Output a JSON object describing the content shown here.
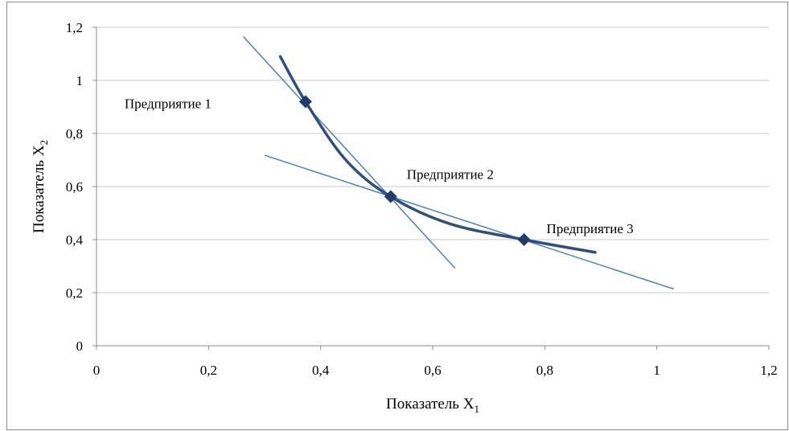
{
  "chart_data": {
    "type": "scatter",
    "title": "",
    "xlabel": "Показатель X",
    "xlabel_sub": "1",
    "ylabel": "Показатель X",
    "ylabel_sub": "2",
    "xlim": [
      0,
      1.2
    ],
    "ylim": [
      0,
      1.2
    ],
    "x_ticks": [
      0,
      0.2,
      0.4,
      0.6,
      0.8,
      1,
      1.2
    ],
    "x_tick_labels": [
      "0",
      "0,2",
      "0,4",
      "0,6",
      "0,8",
      "1",
      "1,2"
    ],
    "y_ticks": [
      0,
      0.2,
      0.4,
      0.6,
      0.8,
      1,
      1.2
    ],
    "y_tick_labels": [
      "0",
      "0,2",
      "0,4",
      "0,6",
      "0,8",
      "1",
      "1,2"
    ],
    "grid": "horizontal",
    "legend": "none",
    "points": [
      {
        "label": "Предприятие 1",
        "x": 0.373,
        "y": 0.92
      },
      {
        "label": "Предприятие 2",
        "x": 0.525,
        "y": 0.562
      },
      {
        "label": "Предприятие 3",
        "x": 0.763,
        "y": 0.4
      }
    ],
    "curve": [
      {
        "x": 0.328,
        "y": 1.09
      },
      {
        "x": 0.373,
        "y": 0.92
      },
      {
        "x": 0.445,
        "y": 0.7
      },
      {
        "x": 0.525,
        "y": 0.562
      },
      {
        "x": 0.63,
        "y": 0.46
      },
      {
        "x": 0.763,
        "y": 0.4
      },
      {
        "x": 0.89,
        "y": 0.352
      }
    ],
    "tangent_lines": [
      {
        "from": {
          "x": 0.262,
          "y": 1.165
        },
        "to": {
          "x": 0.64,
          "y": 0.292
        }
      },
      {
        "from": {
          "x": 0.3,
          "y": 0.718
        },
        "to": {
          "x": 1.03,
          "y": 0.214
        }
      }
    ],
    "colors": {
      "curve": "#2f4f7c",
      "marker": "#1f3d6b",
      "tangent": "#4f81bd",
      "grid": "#c8c8c8",
      "axis": "#8c8c8c"
    }
  }
}
